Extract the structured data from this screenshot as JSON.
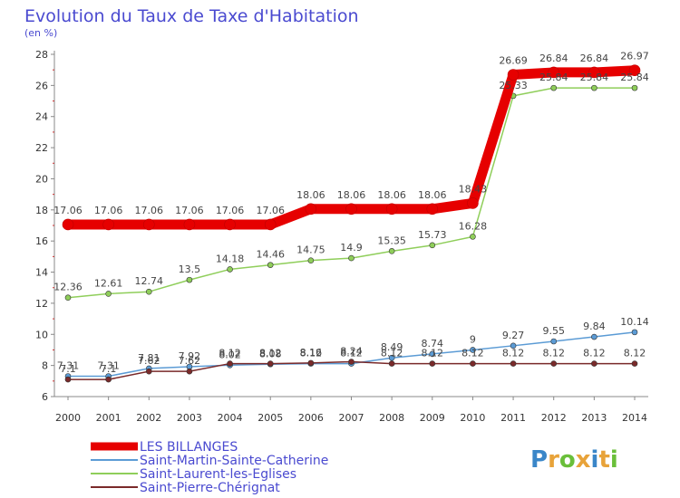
{
  "title": "Evolution du Taux de Taxe d'Habitation",
  "subtitle": "(en %)",
  "logo": {
    "text": "Proxiti",
    "colors": [
      "#3a86c8",
      "#e8a33a",
      "#6abf3a",
      "#e8a33a",
      "#3a86c8",
      "#e8a33a",
      "#6abf3a"
    ]
  },
  "chart_data": {
    "type": "line",
    "title": "Evolution du Taux de Taxe d'Habitation",
    "subtitle": "(en %)",
    "xlabel": "",
    "ylabel": "",
    "x": [
      "2000",
      "2001",
      "2002",
      "2003",
      "2004",
      "2005",
      "2006",
      "2007",
      "2008",
      "2009",
      "2010",
      "2011",
      "2012",
      "2013",
      "2014"
    ],
    "ylim": [
      6,
      28
    ],
    "yticks": [
      "6",
      "8",
      "10",
      "12",
      "14",
      "16",
      "18",
      "20",
      "22",
      "24",
      "26",
      "28"
    ],
    "grid": false,
    "legend": "bottom-left",
    "series": [
      {
        "name": "LES BILLANGES",
        "color": "#e60000",
        "values": [
          17.06,
          17.06,
          17.06,
          17.06,
          17.06,
          17.06,
          18.06,
          18.06,
          18.06,
          18.06,
          18.43,
          26.69,
          26.84,
          26.84,
          26.97
        ],
        "labels": [
          "17.06",
          "17.06",
          "17.06",
          "17.06",
          "17.06",
          "17.06",
          "18.06",
          "18.06",
          "18.06",
          "18.06",
          "18.43",
          "26.69",
          "26.84",
          "26.84",
          "26.97"
        ]
      },
      {
        "name": "Saint-Martin-Sainte-Catherine",
        "color": "#5b9bd5",
        "values": [
          7.31,
          7.31,
          7.81,
          7.92,
          8.02,
          8.08,
          8.12,
          8.12,
          8.49,
          8.74,
          9.0,
          9.27,
          9.55,
          9.84,
          10.14
        ],
        "labels": [
          "7.31",
          "7.31",
          "7.81",
          "7.92",
          "8.02",
          "8.08",
          "8.12",
          "8.12",
          "8.49",
          "8.74",
          "9",
          "9.27",
          "9.55",
          "9.84",
          "10.14"
        ]
      },
      {
        "name": "Saint-Laurent-les-Eglises",
        "color": "#8fce5a",
        "values": [
          12.36,
          12.61,
          12.74,
          13.5,
          14.18,
          14.46,
          14.75,
          14.9,
          15.35,
          15.73,
          16.28,
          25.33,
          25.84,
          25.84,
          25.84
        ],
        "labels": [
          "12.36",
          "12.61",
          "12.74",
          "13.5",
          "14.18",
          "14.46",
          "14.75",
          "14.9",
          "15.35",
          "15.73",
          "16.28",
          "25.33",
          "25.84",
          "25.84",
          "25.84"
        ]
      },
      {
        "name": "Saint-Pierre-Chérignat",
        "color": "#7a2a2a",
        "values": [
          7.1,
          7.1,
          7.62,
          7.62,
          8.12,
          8.12,
          8.16,
          8.24,
          8.12,
          8.12,
          8.12,
          8.12,
          8.12,
          8.12,
          8.12
        ],
        "labels": [
          "7.1",
          "7.1",
          "7.62",
          "7.62",
          "8.12",
          "8.12",
          "8.16",
          "8.24",
          "8.12",
          "8.12",
          "8.12",
          "8.12",
          "8.12",
          "8.12",
          "8.12"
        ]
      }
    ]
  }
}
